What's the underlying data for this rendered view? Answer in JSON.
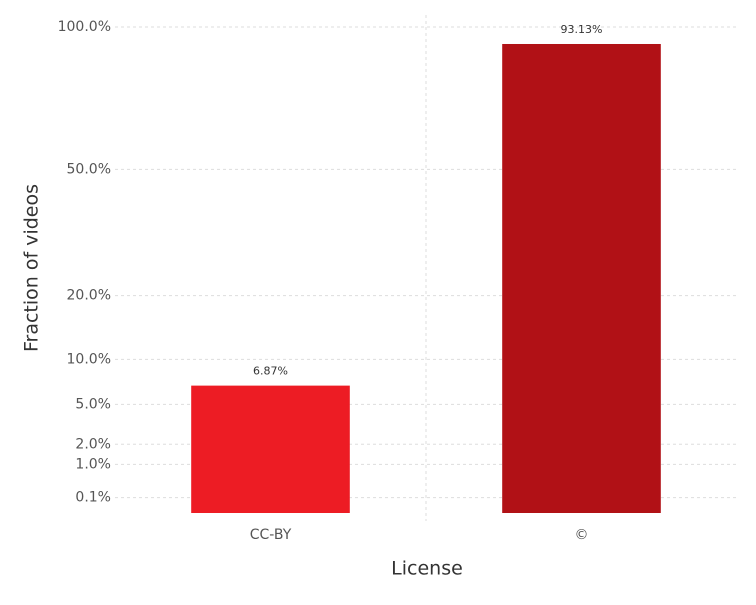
{
  "chart_data": {
    "type": "bar",
    "x_label": "License",
    "y_label": "Fraction of videos",
    "categories": [
      "CC-BY",
      "©"
    ],
    "values": [
      6.87,
      93.13
    ],
    "value_labels": [
      "6.87%",
      "93.13%"
    ],
    "colors": [
      "#ed1c24",
      "#b11116"
    ],
    "y_scale": "sqrt",
    "ylim": [
      0,
      105
    ],
    "yticks": [
      {
        "value": 0.1,
        "label": "0.1%"
      },
      {
        "value": 1,
        "label": "1.0%"
      },
      {
        "value": 2,
        "label": "2.0%"
      },
      {
        "value": 5,
        "label": "5.0%"
      },
      {
        "value": 10,
        "label": "10.0%"
      },
      {
        "value": 20,
        "label": "20.0%"
      },
      {
        "value": 50,
        "label": "50.0%"
      },
      {
        "value": 100,
        "label": "100.0%"
      }
    ],
    "grid": true
  }
}
